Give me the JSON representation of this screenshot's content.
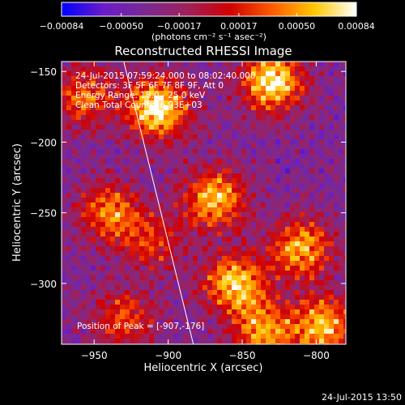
{
  "chart_data": {
    "type": "heatmap",
    "title": "Reconstructed RHESSI Image",
    "xlabel": "Heliocentric X (arcsec)",
    "ylabel": "Heliocentric Y (arcsec)",
    "xlim": [
      -972,
      -780
    ],
    "ylim": [
      -343,
      -143
    ],
    "x_ticks": [
      -950,
      -900,
      -850,
      -800
    ],
    "x_tick_labels": [
      "−950",
      "−900",
      "−850",
      "−800"
    ],
    "y_ticks": [
      -150,
      -200,
      -250,
      -300
    ],
    "y_tick_labels": [
      "−150",
      "−200",
      "−250",
      "−300"
    ],
    "grid": false,
    "colorbar": {
      "range": [
        -0.00084,
        0.00084
      ],
      "ticks": [
        -0.00084,
        -0.0005,
        -0.00017,
        0.00017,
        0.0005,
        0.00084
      ],
      "tick_labels": [
        "−0.00084",
        "−0.00050",
        "−0.00017",
        "0.00017",
        "0.00050",
        "0.00084"
      ],
      "unit_label": "(photons cm⁻² s⁻¹ asec⁻²)",
      "colormap": [
        "#0000ff",
        "#6a1cc8",
        "#7a2a90",
        "#a0205a",
        "#d10000",
        "#ff5a00",
        "#ffc800",
        "#ffffff"
      ]
    },
    "sources": [
      {
        "x": -907,
        "y": -176,
        "value": 0.00084
      },
      {
        "x": -830,
        "y": -157,
        "value": 0.0008
      },
      {
        "x": -868,
        "y": -240,
        "value": 0.00062
      },
      {
        "x": -940,
        "y": -250,
        "value": 0.00045
      },
      {
        "x": -855,
        "y": -300,
        "value": 0.00068
      },
      {
        "x": -810,
        "y": -275,
        "value": 0.00055
      },
      {
        "x": -795,
        "y": -330,
        "value": 0.0006
      },
      {
        "x": -835,
        "y": -335,
        "value": 0.0005
      },
      {
        "x": -930,
        "y": -325,
        "value": 0.0003
      },
      {
        "x": -957,
        "y": -168,
        "value": 0.00035
      },
      {
        "x": -910,
        "y": -270,
        "value": 0.0002
      }
    ],
    "limb_line": [
      [
        -930,
        -143
      ],
      [
        -883,
        -343
      ]
    ],
    "info_lines": [
      "24-Jul-2015 07:59:24.000 to 08:02:40.000",
      "Detectors: 3F 5F 6F 7F 8F 9F, Att 0",
      "Energy Range: 18.0 - 25.0 keV",
      "Clean    Total Counts: 6.93E+03"
    ],
    "peak_label": "Position of Peak = [-907,-176]",
    "timestamp": "24-Jul-2015 13:50"
  }
}
